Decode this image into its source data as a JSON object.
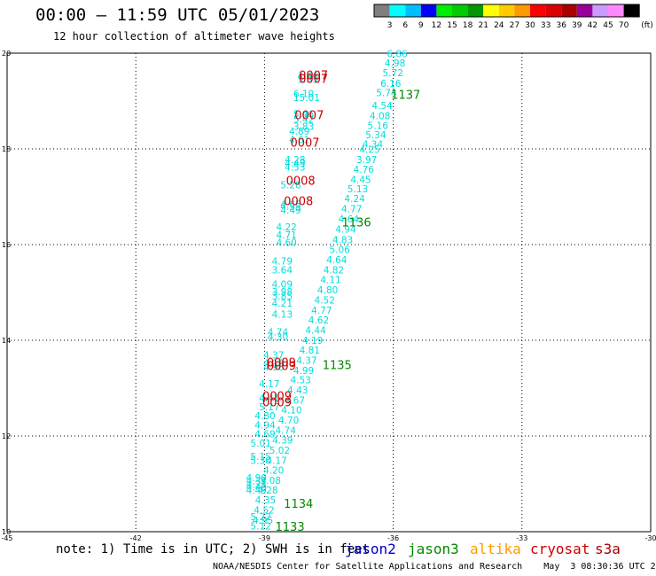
{
  "header": {
    "title": "00:00 — 11:59 UTC 05/01/2023",
    "subtitle": "12 hour collection of altimeter wave heights"
  },
  "color_scale": {
    "labels": [
      "3",
      "6",
      "9",
      "12",
      "15",
      "18",
      "21",
      "24",
      "27",
      "30",
      "33",
      "36",
      "39",
      "42",
      "45",
      "70"
    ],
    "unit": "(ft)",
    "colors": [
      "#7f7f7f",
      "#00ffff",
      "#00bfff",
      "#0000ff",
      "#00ee00",
      "#00cc00",
      "#009900",
      "#ffff00",
      "#ffcc00",
      "#ff9900",
      "#ff0000",
      "#dd0000",
      "#aa0000",
      "#990099",
      "#cc99ff",
      "#ff88ff",
      "#000000"
    ]
  },
  "note": "note: 1) Time is in UTC; 2) SWH is in feet",
  "legend": {
    "satellites": [
      {
        "name": "jason2",
        "color": "#0000cc"
      },
      {
        "name": "jason3",
        "color": "#008800"
      },
      {
        "name": "altika",
        "color": "#ff9900"
      },
      {
        "name": "cryosat",
        "color": "#cc0000"
      },
      {
        "name": "s3a",
        "color": "#aa0000"
      }
    ]
  },
  "footer": "NOAA/NESDIS Center for Satellite Applications and Research    May  3 08:30:36 UTC 2023",
  "chart_data": {
    "type": "scatter",
    "xlim": [
      -45,
      -30
    ],
    "ylim": [
      10,
      20
    ],
    "x_ticks": [
      "-45",
      "-42",
      "-39",
      "-36",
      "-33",
      "-30"
    ],
    "y_ticks": [
      "10",
      "12",
      "14",
      "16",
      "18",
      "20"
    ],
    "grid": true,
    "swh_labels": [
      {
        "x": -38.23,
        "y": 19.45,
        "label": "4.46"
      },
      {
        "x": -38.23,
        "y": 19.38,
        "label": "5.35"
      },
      {
        "x": -38.33,
        "y": 19.08,
        "label": "6.10"
      },
      {
        "x": -38.33,
        "y": 19.0,
        "label": "15.01"
      },
      {
        "x": -38.33,
        "y": 18.66,
        "label": "5.46"
      },
      {
        "x": -38.33,
        "y": 18.55,
        "label": "5.42"
      },
      {
        "x": -38.33,
        "y": 18.4,
        "label": "3.83"
      },
      {
        "x": -38.43,
        "y": 18.3,
        "label": "4.89"
      },
      {
        "x": -38.43,
        "y": 18.12,
        "label": "4.61"
      },
      {
        "x": -38.53,
        "y": 17.7,
        "label": "4.28"
      },
      {
        "x": -38.53,
        "y": 17.63,
        "label": "4.49"
      },
      {
        "x": -38.53,
        "y": 17.55,
        "label": "4.53"
      },
      {
        "x": -38.63,
        "y": 17.18,
        "label": "5.28"
      },
      {
        "x": -38.63,
        "y": 16.77,
        "label": "4.65"
      },
      {
        "x": -38.63,
        "y": 16.72,
        "label": "4.55"
      },
      {
        "x": -38.63,
        "y": 16.65,
        "label": "4.49"
      },
      {
        "x": -38.73,
        "y": 16.3,
        "label": "4.22"
      },
      {
        "x": -38.73,
        "y": 16.13,
        "label": "4.71"
      },
      {
        "x": -38.73,
        "y": 15.97,
        "label": "4.60"
      },
      {
        "x": -38.83,
        "y": 15.58,
        "label": "4.79"
      },
      {
        "x": -38.83,
        "y": 15.4,
        "label": "3.64"
      },
      {
        "x": -38.83,
        "y": 15.1,
        "label": "4.09"
      },
      {
        "x": -38.83,
        "y": 14.94,
        "label": "3.98"
      },
      {
        "x": -38.83,
        "y": 14.85,
        "label": "3.85"
      },
      {
        "x": -38.83,
        "y": 14.7,
        "label": "4.21"
      },
      {
        "x": -38.83,
        "y": 14.47,
        "label": "4.13"
      },
      {
        "x": -38.93,
        "y": 14.1,
        "label": "4.74"
      },
      {
        "x": -38.93,
        "y": 14.0,
        "label": "4.30"
      },
      {
        "x": -39.03,
        "y": 13.62,
        "label": "4.37"
      },
      {
        "x": -39.03,
        "y": 13.45,
        "label": "4.18"
      },
      {
        "x": -39.03,
        "y": 13.37,
        "label": "4.98"
      },
      {
        "x": -39.13,
        "y": 13.02,
        "label": "4.17"
      },
      {
        "x": -39.13,
        "y": 12.72,
        "label": "4.41"
      },
      {
        "x": -39.13,
        "y": 12.54,
        "label": "5.17"
      },
      {
        "x": -39.23,
        "y": 12.35,
        "label": "4.80"
      },
      {
        "x": -39.23,
        "y": 12.16,
        "label": "4.94"
      },
      {
        "x": -39.23,
        "y": 11.97,
        "label": "4.69"
      },
      {
        "x": -39.33,
        "y": 11.78,
        "label": "5.01"
      },
      {
        "x": -39.33,
        "y": 11.5,
        "label": "5.15"
      },
      {
        "x": -39.33,
        "y": 11.42,
        "label": "5.30"
      },
      {
        "x": -39.43,
        "y": 11.06,
        "label": "4.90"
      },
      {
        "x": -39.43,
        "y": 10.99,
        "label": "4.34"
      },
      {
        "x": -39.43,
        "y": 10.92,
        "label": "4.21"
      },
      {
        "x": -39.43,
        "y": 10.86,
        "label": "4.40"
      },
      {
        "x": -39.43,
        "y": 10.8,
        "label": "4.49"
      },
      {
        "x": -39.33,
        "y": 10.24,
        "label": "5.22"
      },
      {
        "x": -39.33,
        "y": 10.05,
        "label": "5.12"
      },
      {
        "x": -36.15,
        "y": 19.92,
        "label": "6.86"
      },
      {
        "x": -36.2,
        "y": 19.72,
        "label": "4.98"
      },
      {
        "x": -36.25,
        "y": 19.52,
        "label": "5.72"
      },
      {
        "x": -36.3,
        "y": 19.3,
        "label": "6.16"
      },
      {
        "x": -36.4,
        "y": 19.1,
        "label": "5.74"
      },
      {
        "x": -36.5,
        "y": 18.83,
        "label": "4.54"
      },
      {
        "x": -36.55,
        "y": 18.62,
        "label": "4.08"
      },
      {
        "x": -36.6,
        "y": 18.42,
        "label": "5.16"
      },
      {
        "x": -36.65,
        "y": 18.22,
        "label": "5.34"
      },
      {
        "x": -36.72,
        "y": 18.03,
        "label": "4.34"
      },
      {
        "x": -36.79,
        "y": 17.92,
        "label": "4.25"
      },
      {
        "x": -36.86,
        "y": 17.7,
        "label": "3.97"
      },
      {
        "x": -36.93,
        "y": 17.5,
        "label": "4.76"
      },
      {
        "x": -37.0,
        "y": 17.29,
        "label": "4.45"
      },
      {
        "x": -37.07,
        "y": 17.09,
        "label": "5.13"
      },
      {
        "x": -37.14,
        "y": 16.89,
        "label": "4.24"
      },
      {
        "x": -37.21,
        "y": 16.68,
        "label": "4.77"
      },
      {
        "x": -37.28,
        "y": 16.46,
        "label": "4.64"
      },
      {
        "x": -37.35,
        "y": 16.25,
        "label": "4.94"
      },
      {
        "x": -37.42,
        "y": 16.03,
        "label": "4.83"
      },
      {
        "x": -37.49,
        "y": 15.82,
        "label": "5.06"
      },
      {
        "x": -37.56,
        "y": 15.61,
        "label": "4.64"
      },
      {
        "x": -37.63,
        "y": 15.4,
        "label": "4.82"
      },
      {
        "x": -37.7,
        "y": 15.19,
        "label": "4.11"
      },
      {
        "x": -37.77,
        "y": 14.98,
        "label": "4.80"
      },
      {
        "x": -37.84,
        "y": 14.77,
        "label": "4.52"
      },
      {
        "x": -37.91,
        "y": 14.56,
        "label": "4.77"
      },
      {
        "x": -37.98,
        "y": 14.35,
        "label": "4.62"
      },
      {
        "x": -38.05,
        "y": 14.14,
        "label": "4.44"
      },
      {
        "x": -38.12,
        "y": 13.93,
        "label": "4.19"
      },
      {
        "x": -38.19,
        "y": 13.72,
        "label": "4.81"
      },
      {
        "x": -38.26,
        "y": 13.51,
        "label": "4.37"
      },
      {
        "x": -38.33,
        "y": 13.3,
        "label": "4.99"
      },
      {
        "x": -38.4,
        "y": 13.1,
        "label": "4.53"
      },
      {
        "x": -38.47,
        "y": 12.89,
        "label": "4.43"
      },
      {
        "x": -38.54,
        "y": 12.68,
        "label": "4.67"
      },
      {
        "x": -38.61,
        "y": 12.47,
        "label": "4.10"
      },
      {
        "x": -38.68,
        "y": 12.26,
        "label": "4.70"
      },
      {
        "x": -38.75,
        "y": 12.05,
        "label": "4.74"
      },
      {
        "x": -38.82,
        "y": 11.84,
        "label": "4.39"
      },
      {
        "x": -38.89,
        "y": 11.63,
        "label": "5.02"
      },
      {
        "x": -38.96,
        "y": 11.42,
        "label": "4.17"
      },
      {
        "x": -39.03,
        "y": 11.21,
        "label": "4.20"
      },
      {
        "x": -39.1,
        "y": 11.0,
        "label": "5.08"
      },
      {
        "x": -39.17,
        "y": 10.8,
        "label": "4.28"
      },
      {
        "x": -39.22,
        "y": 10.59,
        "label": "4.35"
      },
      {
        "x": -39.25,
        "y": 10.38,
        "label": "4.52"
      },
      {
        "x": -39.28,
        "y": 10.17,
        "label": "4.95"
      }
    ],
    "pass_times": [
      {
        "x": -38.2,
        "y": 19.45,
        "label": "0007",
        "satellite": "cryosat"
      },
      {
        "x": -38.2,
        "y": 19.38,
        "label": "0007",
        "satellite": "cryosat"
      },
      {
        "x": -38.3,
        "y": 18.62,
        "label": "0007",
        "satellite": "cryosat"
      },
      {
        "x": -38.4,
        "y": 18.05,
        "label": "0007",
        "satellite": "cryosat"
      },
      {
        "x": -38.5,
        "y": 17.25,
        "label": "0008",
        "satellite": "cryosat"
      },
      {
        "x": -38.55,
        "y": 16.82,
        "label": "0008",
        "satellite": "cryosat"
      },
      {
        "x": -38.95,
        "y": 13.45,
        "label": "0009",
        "satellite": "cryosat"
      },
      {
        "x": -38.95,
        "y": 13.38,
        "label": "0009",
        "satellite": "cryosat"
      },
      {
        "x": -39.05,
        "y": 12.75,
        "label": "0009",
        "satellite": "cryosat"
      },
      {
        "x": -39.05,
        "y": 12.62,
        "label": "0009",
        "satellite": "cryosat"
      },
      {
        "x": -36.05,
        "y": 19.05,
        "label": "1137",
        "satellite": "jason3"
      },
      {
        "x": -37.2,
        "y": 16.38,
        "label": "1136",
        "satellite": "jason3"
      },
      {
        "x": -37.65,
        "y": 13.4,
        "label": "1135",
        "satellite": "jason3"
      },
      {
        "x": -38.55,
        "y": 10.5,
        "label": "1134",
        "satellite": "jason3"
      },
      {
        "x": -38.75,
        "y": 10.02,
        "label": "1133",
        "satellite": "jason3"
      }
    ]
  }
}
